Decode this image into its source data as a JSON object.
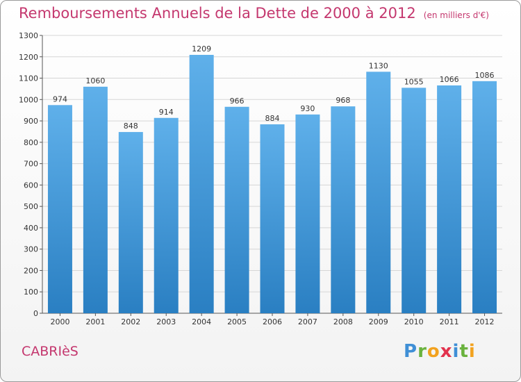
{
  "title": "Remboursements Annuels de la Dette de 2000 à 2012",
  "unit_note": "(en milliers d'€)",
  "commune": "CABRIèS",
  "brand": {
    "letters": [
      "P",
      "r",
      "o",
      "x",
      "i",
      "t",
      "i"
    ],
    "colors": [
      "#3f8fd6",
      "#6ab23e",
      "#f2a21f",
      "#e2324d",
      "#3f8fd6",
      "#6ab23e",
      "#f2a21f"
    ]
  },
  "colors": {
    "bar_top": "#5fb0ea",
    "bar_bottom": "#2a7fc2",
    "title": "#c4376e",
    "grid": "#d6d6d6"
  },
  "chart_data": {
    "type": "bar",
    "categories": [
      "2000",
      "2001",
      "2002",
      "2003",
      "2004",
      "2005",
      "2006",
      "2007",
      "2008",
      "2009",
      "2010",
      "2011",
      "2012"
    ],
    "values": [
      974,
      1060,
      848,
      914,
      1209,
      966,
      884,
      930,
      968,
      1130,
      1055,
      1066,
      1086
    ],
    "yticks": [
      0,
      100,
      200,
      300,
      400,
      500,
      600,
      700,
      800,
      900,
      1000,
      1100,
      1200,
      1300
    ],
    "ylim": [
      0,
      1300
    ],
    "grid": true
  }
}
